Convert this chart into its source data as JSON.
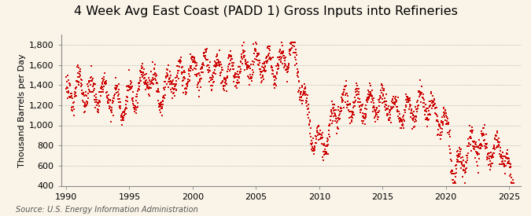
{
  "title": "4 Week Avg East Coast (PADD 1) Gross Inputs into Refineries",
  "ylabel": "Thousand Barrels per Day",
  "source": "Source: U.S. Energy Information Administration",
  "background_color": "#FAF4E8",
  "line_color": "#CC0000",
  "grid_color": "#999999",
  "ylim": [
    400,
    1900
  ],
  "yticks": [
    400,
    600,
    800,
    1000,
    1200,
    1400,
    1600,
    1800
  ],
  "ytick_labels": [
    "400",
    "600",
    "800",
    "1,000",
    "1,200",
    "1,400",
    "1,600",
    "1,800"
  ],
  "xlim_start": 1989.6,
  "xlim_end": 2025.9,
  "xticks": [
    1990,
    1995,
    2000,
    2005,
    2010,
    2015,
    2020,
    2025
  ],
  "title_fontsize": 11.5,
  "label_fontsize": 8,
  "tick_fontsize": 8,
  "source_fontsize": 7
}
